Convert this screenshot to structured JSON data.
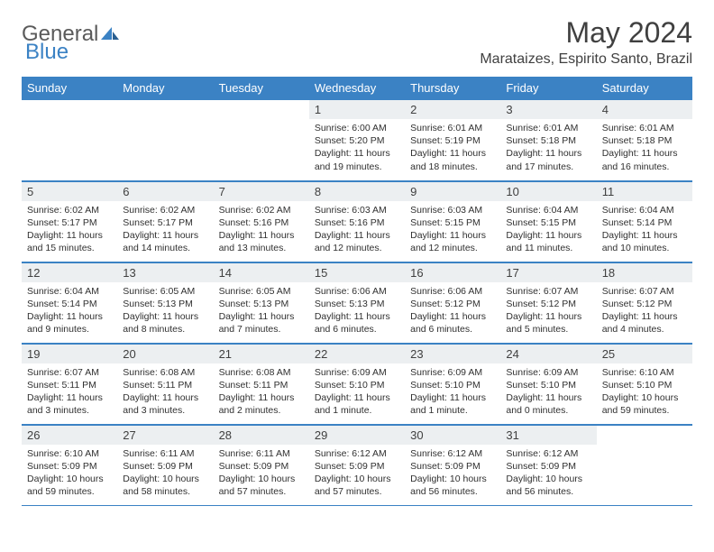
{
  "logo": {
    "word1": "General",
    "word2": "Blue"
  },
  "title": "May 2024",
  "location": "Marataizes, Espirito Santo, Brazil",
  "colors": {
    "header_bg": "#3b82c4",
    "header_fg": "#ffffff",
    "daynum_bg": "#eceff1",
    "border": "#3b82c4",
    "text": "#303030"
  },
  "weekdays": [
    "Sunday",
    "Monday",
    "Tuesday",
    "Wednesday",
    "Thursday",
    "Friday",
    "Saturday"
  ],
  "weeks": [
    [
      null,
      null,
      null,
      {
        "n": "1",
        "sr": "Sunrise: 6:00 AM",
        "ss": "Sunset: 5:20 PM",
        "d1": "Daylight: 11 hours",
        "d2": "and 19 minutes."
      },
      {
        "n": "2",
        "sr": "Sunrise: 6:01 AM",
        "ss": "Sunset: 5:19 PM",
        "d1": "Daylight: 11 hours",
        "d2": "and 18 minutes."
      },
      {
        "n": "3",
        "sr": "Sunrise: 6:01 AM",
        "ss": "Sunset: 5:18 PM",
        "d1": "Daylight: 11 hours",
        "d2": "and 17 minutes."
      },
      {
        "n": "4",
        "sr": "Sunrise: 6:01 AM",
        "ss": "Sunset: 5:18 PM",
        "d1": "Daylight: 11 hours",
        "d2": "and 16 minutes."
      }
    ],
    [
      {
        "n": "5",
        "sr": "Sunrise: 6:02 AM",
        "ss": "Sunset: 5:17 PM",
        "d1": "Daylight: 11 hours",
        "d2": "and 15 minutes."
      },
      {
        "n": "6",
        "sr": "Sunrise: 6:02 AM",
        "ss": "Sunset: 5:17 PM",
        "d1": "Daylight: 11 hours",
        "d2": "and 14 minutes."
      },
      {
        "n": "7",
        "sr": "Sunrise: 6:02 AM",
        "ss": "Sunset: 5:16 PM",
        "d1": "Daylight: 11 hours",
        "d2": "and 13 minutes."
      },
      {
        "n": "8",
        "sr": "Sunrise: 6:03 AM",
        "ss": "Sunset: 5:16 PM",
        "d1": "Daylight: 11 hours",
        "d2": "and 12 minutes."
      },
      {
        "n": "9",
        "sr": "Sunrise: 6:03 AM",
        "ss": "Sunset: 5:15 PM",
        "d1": "Daylight: 11 hours",
        "d2": "and 12 minutes."
      },
      {
        "n": "10",
        "sr": "Sunrise: 6:04 AM",
        "ss": "Sunset: 5:15 PM",
        "d1": "Daylight: 11 hours",
        "d2": "and 11 minutes."
      },
      {
        "n": "11",
        "sr": "Sunrise: 6:04 AM",
        "ss": "Sunset: 5:14 PM",
        "d1": "Daylight: 11 hours",
        "d2": "and 10 minutes."
      }
    ],
    [
      {
        "n": "12",
        "sr": "Sunrise: 6:04 AM",
        "ss": "Sunset: 5:14 PM",
        "d1": "Daylight: 11 hours",
        "d2": "and 9 minutes."
      },
      {
        "n": "13",
        "sr": "Sunrise: 6:05 AM",
        "ss": "Sunset: 5:13 PM",
        "d1": "Daylight: 11 hours",
        "d2": "and 8 minutes."
      },
      {
        "n": "14",
        "sr": "Sunrise: 6:05 AM",
        "ss": "Sunset: 5:13 PM",
        "d1": "Daylight: 11 hours",
        "d2": "and 7 minutes."
      },
      {
        "n": "15",
        "sr": "Sunrise: 6:06 AM",
        "ss": "Sunset: 5:13 PM",
        "d1": "Daylight: 11 hours",
        "d2": "and 6 minutes."
      },
      {
        "n": "16",
        "sr": "Sunrise: 6:06 AM",
        "ss": "Sunset: 5:12 PM",
        "d1": "Daylight: 11 hours",
        "d2": "and 6 minutes."
      },
      {
        "n": "17",
        "sr": "Sunrise: 6:07 AM",
        "ss": "Sunset: 5:12 PM",
        "d1": "Daylight: 11 hours",
        "d2": "and 5 minutes."
      },
      {
        "n": "18",
        "sr": "Sunrise: 6:07 AM",
        "ss": "Sunset: 5:12 PM",
        "d1": "Daylight: 11 hours",
        "d2": "and 4 minutes."
      }
    ],
    [
      {
        "n": "19",
        "sr": "Sunrise: 6:07 AM",
        "ss": "Sunset: 5:11 PM",
        "d1": "Daylight: 11 hours",
        "d2": "and 3 minutes."
      },
      {
        "n": "20",
        "sr": "Sunrise: 6:08 AM",
        "ss": "Sunset: 5:11 PM",
        "d1": "Daylight: 11 hours",
        "d2": "and 3 minutes."
      },
      {
        "n": "21",
        "sr": "Sunrise: 6:08 AM",
        "ss": "Sunset: 5:11 PM",
        "d1": "Daylight: 11 hours",
        "d2": "and 2 minutes."
      },
      {
        "n": "22",
        "sr": "Sunrise: 6:09 AM",
        "ss": "Sunset: 5:10 PM",
        "d1": "Daylight: 11 hours",
        "d2": "and 1 minute."
      },
      {
        "n": "23",
        "sr": "Sunrise: 6:09 AM",
        "ss": "Sunset: 5:10 PM",
        "d1": "Daylight: 11 hours",
        "d2": "and 1 minute."
      },
      {
        "n": "24",
        "sr": "Sunrise: 6:09 AM",
        "ss": "Sunset: 5:10 PM",
        "d1": "Daylight: 11 hours",
        "d2": "and 0 minutes."
      },
      {
        "n": "25",
        "sr": "Sunrise: 6:10 AM",
        "ss": "Sunset: 5:10 PM",
        "d1": "Daylight: 10 hours",
        "d2": "and 59 minutes."
      }
    ],
    [
      {
        "n": "26",
        "sr": "Sunrise: 6:10 AM",
        "ss": "Sunset: 5:09 PM",
        "d1": "Daylight: 10 hours",
        "d2": "and 59 minutes."
      },
      {
        "n": "27",
        "sr": "Sunrise: 6:11 AM",
        "ss": "Sunset: 5:09 PM",
        "d1": "Daylight: 10 hours",
        "d2": "and 58 minutes."
      },
      {
        "n": "28",
        "sr": "Sunrise: 6:11 AM",
        "ss": "Sunset: 5:09 PM",
        "d1": "Daylight: 10 hours",
        "d2": "and 57 minutes."
      },
      {
        "n": "29",
        "sr": "Sunrise: 6:12 AM",
        "ss": "Sunset: 5:09 PM",
        "d1": "Daylight: 10 hours",
        "d2": "and 57 minutes."
      },
      {
        "n": "30",
        "sr": "Sunrise: 6:12 AM",
        "ss": "Sunset: 5:09 PM",
        "d1": "Daylight: 10 hours",
        "d2": "and 56 minutes."
      },
      {
        "n": "31",
        "sr": "Sunrise: 6:12 AM",
        "ss": "Sunset: 5:09 PM",
        "d1": "Daylight: 10 hours",
        "d2": "and 56 minutes."
      },
      null
    ]
  ]
}
